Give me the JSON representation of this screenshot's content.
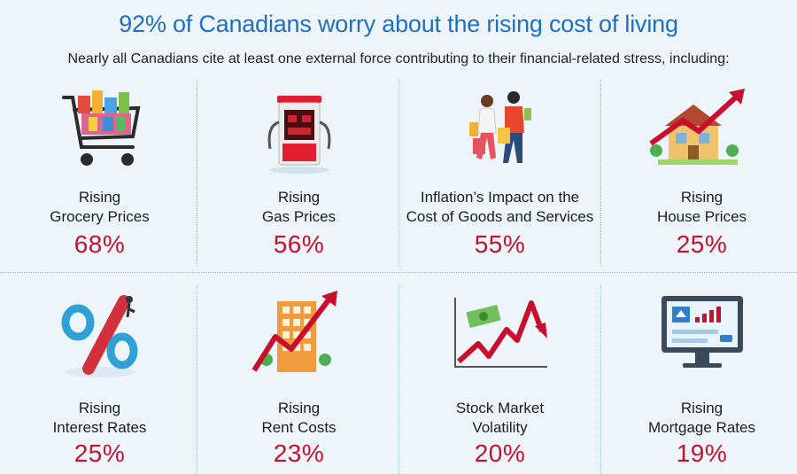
{
  "header": {
    "title": "92% of Canadians worry about the rising cost of living",
    "subtitle": "Nearly all Canadians cite at least one external force contributing to their financial-related stress, including:"
  },
  "items": [
    {
      "line1": "Rising",
      "line2": "Grocery Prices",
      "percent": "68%",
      "icon": "shopping-cart-icon"
    },
    {
      "line1": "Rising",
      "line2": "Gas Prices",
      "percent": "56%",
      "icon": "gas-pump-icon"
    },
    {
      "line1": "Inflation’s Impact on the",
      "line2": "Cost of Goods and Services",
      "percent": "55%",
      "icon": "shoppers-icon"
    },
    {
      "line1": "Rising",
      "line2": "House Prices",
      "percent": "25%",
      "icon": "house-rising-icon"
    },
    {
      "line1": "Rising",
      "line2": "Interest Rates",
      "percent": "25%",
      "icon": "percent-icon"
    },
    {
      "line1": "Rising",
      "line2": "Rent Costs",
      "percent": "23%",
      "icon": "building-rising-icon"
    },
    {
      "line1": "Stock Market",
      "line2": "Volatility",
      "percent": "20%",
      "icon": "stock-volatility-icon"
    },
    {
      "line1": "Rising",
      "line2": "Mortgage Rates",
      "percent": "19%",
      "icon": "mortgage-monitor-icon"
    }
  ],
  "colors": {
    "title": "#1f6fc0",
    "percent": "#c8102e",
    "background": "#eef5fa"
  }
}
